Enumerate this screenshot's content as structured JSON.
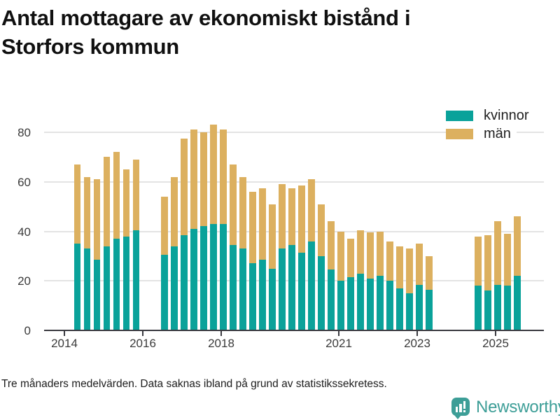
{
  "title_lines": [
    "Antal mottagare av ekonomiskt bistånd i",
    "Storfors kommun"
  ],
  "legend": {
    "kvinnor_label": "kvinnor",
    "man_label": "män"
  },
  "footnote": "Tre månaders medelvärden. Data saknas ibland på grund av statistikssekretess.",
  "brand": {
    "name": "Newsworthy"
  },
  "colors": {
    "kvinnor": "#0aa29a",
    "man": "#dcb05f",
    "grid": "#e3e3e3",
    "axis": "#3a3a40",
    "tick_text": "#3a3a3a",
    "brand": "#3d9e97"
  },
  "chart_data": {
    "type": "bar",
    "stacked": true,
    "title": "Antal mottagare av ekonomiskt bistånd i Storfors kommun",
    "series_names": [
      "kvinnor",
      "män"
    ],
    "legend_position": "top-right",
    "x_unit": "year (quarterly bars, 3-month averages)",
    "x_ticks": [
      2014,
      2016,
      2018,
      2021,
      2023,
      2025
    ],
    "y_ticks": [
      0,
      20,
      40,
      60,
      80
    ],
    "ylim": [
      0,
      88
    ],
    "xlim": [
      2013.5,
      2026.2
    ],
    "grid": "horizontal",
    "bars": [
      {
        "t": 2014.33,
        "kvinnor": 35,
        "man": 32
      },
      {
        "t": 2014.58,
        "kvinnor": 33,
        "man": 29
      },
      {
        "t": 2014.83,
        "kvinnor": 28.5,
        "man": 32.5
      },
      {
        "t": 2015.08,
        "kvinnor": 34,
        "man": 36
      },
      {
        "t": 2015.33,
        "kvinnor": 37,
        "man": 35
      },
      {
        "t": 2015.58,
        "kvinnor": 38,
        "man": 27
      },
      {
        "t": 2015.83,
        "kvinnor": 40.5,
        "man": 28.5
      },
      {
        "t": 2016.55,
        "kvinnor": 30.5,
        "man": 23.5
      },
      {
        "t": 2016.8,
        "kvinnor": 34,
        "man": 28
      },
      {
        "t": 2017.05,
        "kvinnor": 38.5,
        "man": 39
      },
      {
        "t": 2017.3,
        "kvinnor": 41,
        "man": 40
      },
      {
        "t": 2017.55,
        "kvinnor": 42,
        "man": 38
      },
      {
        "t": 2017.8,
        "kvinnor": 43,
        "man": 40
      },
      {
        "t": 2018.05,
        "kvinnor": 43,
        "man": 38
      },
      {
        "t": 2018.3,
        "kvinnor": 34.5,
        "man": 32.5
      },
      {
        "t": 2018.55,
        "kvinnor": 33,
        "man": 29
      },
      {
        "t": 2018.8,
        "kvinnor": 27,
        "man": 29
      },
      {
        "t": 2019.05,
        "kvinnor": 28.5,
        "man": 29
      },
      {
        "t": 2019.3,
        "kvinnor": 25,
        "man": 26
      },
      {
        "t": 2019.55,
        "kvinnor": 33,
        "man": 26
      },
      {
        "t": 2019.8,
        "kvinnor": 34.5,
        "man": 23
      },
      {
        "t": 2020.05,
        "kvinnor": 31.5,
        "man": 27
      },
      {
        "t": 2020.3,
        "kvinnor": 36,
        "man": 25
      },
      {
        "t": 2020.55,
        "kvinnor": 30,
        "man": 21
      },
      {
        "t": 2020.8,
        "kvinnor": 24.5,
        "man": 19.5
      },
      {
        "t": 2021.05,
        "kvinnor": 20,
        "man": 20
      },
      {
        "t": 2021.3,
        "kvinnor": 21.5,
        "man": 15.5
      },
      {
        "t": 2021.55,
        "kvinnor": 23,
        "man": 17.5
      },
      {
        "t": 2021.8,
        "kvinnor": 21,
        "man": 18.5
      },
      {
        "t": 2022.05,
        "kvinnor": 22,
        "man": 18
      },
      {
        "t": 2022.3,
        "kvinnor": 20,
        "man": 16
      },
      {
        "t": 2022.55,
        "kvinnor": 17,
        "man": 17
      },
      {
        "t": 2022.8,
        "kvinnor": 15,
        "man": 18
      },
      {
        "t": 2023.05,
        "kvinnor": 18.5,
        "man": 16.5
      },
      {
        "t": 2023.3,
        "kvinnor": 16.5,
        "man": 13.5
      },
      {
        "t": 2024.55,
        "kvinnor": 18,
        "man": 20
      },
      {
        "t": 2024.8,
        "kvinnor": 16,
        "man": 22.5
      },
      {
        "t": 2025.05,
        "kvinnor": 18.5,
        "man": 25.5
      },
      {
        "t": 2025.3,
        "kvinnor": 18,
        "man": 21
      },
      {
        "t": 2025.55,
        "kvinnor": 22,
        "man": 24
      }
    ]
  }
}
